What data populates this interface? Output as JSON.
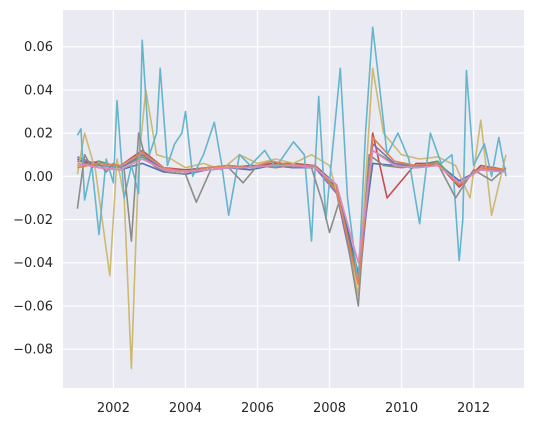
{
  "chart_data": {
    "type": "line",
    "title": "",
    "xlabel": "",
    "ylabel": "",
    "xlim": [
      2000.6,
      2013.4
    ],
    "ylim": [
      -0.098,
      0.077
    ],
    "grid": true,
    "legend": "none",
    "background": "#eaeaf2",
    "x_ticks": [
      {
        "value": 2002,
        "label": "2002"
      },
      {
        "value": 2004,
        "label": "2004"
      },
      {
        "value": 2006,
        "label": "2006"
      },
      {
        "value": 2008,
        "label": "2008"
      },
      {
        "value": 2010,
        "label": "2010"
      },
      {
        "value": 2012,
        "label": "2012"
      }
    ],
    "y_ticks": [
      {
        "value": 0.06,
        "label": "0.06"
      },
      {
        "value": 0.04,
        "label": "0.04"
      },
      {
        "value": 0.02,
        "label": "0.02"
      },
      {
        "value": 0.0,
        "label": "0.00"
      },
      {
        "value": -0.02,
        "label": "−0.02"
      },
      {
        "value": -0.04,
        "label": "−0.04"
      },
      {
        "value": -0.06,
        "label": "−0.06"
      },
      {
        "value": -0.08,
        "label": "−0.08"
      }
    ],
    "series": [
      {
        "color": "#4c72b0",
        "values": [
          [
            2001.0,
            0.008
          ],
          [
            2001.6,
            0.004
          ],
          [
            2002.2,
            0.003
          ],
          [
            2002.8,
            0.006
          ],
          [
            2003.4,
            0.002
          ],
          [
            2004.0,
            0.001
          ],
          [
            2004.6,
            0.003
          ],
          [
            2005.2,
            0.004
          ],
          [
            2005.8,
            0.003
          ],
          [
            2006.4,
            0.005
          ],
          [
            2007.0,
            0.004
          ],
          [
            2007.6,
            0.005
          ],
          [
            2008.2,
            -0.004
          ],
          [
            2008.8,
            -0.045
          ],
          [
            2009.2,
            0.006
          ],
          [
            2009.8,
            0.005
          ],
          [
            2010.4,
            0.004
          ],
          [
            2011.0,
            0.006
          ],
          [
            2011.6,
            -0.002
          ],
          [
            2012.2,
            0.003
          ],
          [
            2012.9,
            0.002
          ]
        ]
      },
      {
        "color": "#55a868",
        "values": [
          [
            2001.0,
            0.005
          ],
          [
            2001.6,
            0.007
          ],
          [
            2002.2,
            0.004
          ],
          [
            2002.8,
            0.009
          ],
          [
            2003.4,
            0.003
          ],
          [
            2004.0,
            0.002
          ],
          [
            2004.6,
            0.004
          ],
          [
            2005.2,
            0.005
          ],
          [
            2005.8,
            0.004
          ],
          [
            2006.4,
            0.006
          ],
          [
            2007.0,
            0.005
          ],
          [
            2007.6,
            0.004
          ],
          [
            2008.2,
            -0.006
          ],
          [
            2008.8,
            -0.048
          ],
          [
            2009.2,
            0.012
          ],
          [
            2009.8,
            0.006
          ],
          [
            2010.4,
            0.005
          ],
          [
            2011.0,
            0.007
          ],
          [
            2011.6,
            -0.004
          ],
          [
            2012.2,
            0.004
          ],
          [
            2012.9,
            0.003
          ]
        ]
      },
      {
        "color": "#c44e52",
        "values": [
          [
            2001.0,
            0.007
          ],
          [
            2001.6,
            0.006
          ],
          [
            2002.2,
            0.005
          ],
          [
            2002.8,
            0.012
          ],
          [
            2003.4,
            0.004
          ],
          [
            2004.0,
            0.003
          ],
          [
            2004.6,
            0.004
          ],
          [
            2005.2,
            0.005
          ],
          [
            2005.8,
            0.004
          ],
          [
            2006.4,
            0.006
          ],
          [
            2007.0,
            0.006
          ],
          [
            2007.6,
            0.005
          ],
          [
            2008.2,
            -0.005
          ],
          [
            2008.8,
            -0.05
          ],
          [
            2009.2,
            0.02
          ],
          [
            2009.6,
            -0.01
          ],
          [
            2010.4,
            0.006
          ],
          [
            2011.0,
            0.006
          ],
          [
            2011.6,
            -0.005
          ],
          [
            2012.2,
            0.005
          ],
          [
            2012.9,
            0.003
          ]
        ]
      },
      {
        "color": "#8172b2",
        "values": [
          [
            2001.0,
            0.009
          ],
          [
            2001.6,
            0.005
          ],
          [
            2002.2,
            0.004
          ],
          [
            2002.8,
            0.01
          ],
          [
            2003.4,
            0.003
          ],
          [
            2004.0,
            0.002
          ],
          [
            2004.6,
            0.003
          ],
          [
            2005.2,
            0.004
          ],
          [
            2005.8,
            0.005
          ],
          [
            2006.4,
            0.005
          ],
          [
            2007.0,
            0.004
          ],
          [
            2007.6,
            0.004
          ],
          [
            2008.2,
            -0.008
          ],
          [
            2008.8,
            -0.055
          ],
          [
            2009.2,
            0.015
          ],
          [
            2009.8,
            0.006
          ],
          [
            2010.4,
            0.004
          ],
          [
            2011.0,
            0.005
          ],
          [
            2011.6,
            -0.003
          ],
          [
            2012.2,
            0.004
          ],
          [
            2012.9,
            0.002
          ]
        ]
      },
      {
        "color": "#ccb974",
        "values": [
          [
            2001.0,
            0.001
          ],
          [
            2001.2,
            0.02
          ],
          [
            2001.5,
            0.003
          ],
          [
            2001.9,
            -0.046
          ],
          [
            2002.1,
            0.008
          ],
          [
            2002.3,
            -0.01
          ],
          [
            2002.5,
            -0.089
          ],
          [
            2002.7,
            0.006
          ],
          [
            2002.9,
            0.04
          ],
          [
            2003.2,
            0.01
          ],
          [
            2003.6,
            0.008
          ],
          [
            2004.0,
            0.004
          ],
          [
            2004.5,
            0.006
          ],
          [
            2005.0,
            0.003
          ],
          [
            2005.5,
            0.01
          ],
          [
            2006.0,
            0.006
          ],
          [
            2006.5,
            0.008
          ],
          [
            2007.0,
            0.006
          ],
          [
            2007.5,
            0.01
          ],
          [
            2008.0,
            0.005
          ],
          [
            2008.4,
            -0.02
          ],
          [
            2008.8,
            -0.055
          ],
          [
            2009.2,
            0.05
          ],
          [
            2009.5,
            0.02
          ],
          [
            2010.0,
            0.01
          ],
          [
            2010.5,
            0.008
          ],
          [
            2011.0,
            0.009
          ],
          [
            2011.5,
            0.005
          ],
          [
            2011.9,
            -0.01
          ],
          [
            2012.2,
            0.026
          ],
          [
            2012.5,
            -0.018
          ],
          [
            2012.9,
            0.01
          ]
        ]
      },
      {
        "color": "#64b5cd",
        "values": [
          [
            2001.0,
            0.019
          ],
          [
            2001.1,
            0.022
          ],
          [
            2001.2,
            -0.011
          ],
          [
            2001.4,
            0.005
          ],
          [
            2001.6,
            -0.027
          ],
          [
            2001.8,
            0.008
          ],
          [
            2002.0,
            -0.003
          ],
          [
            2002.1,
            0.035
          ],
          [
            2002.3,
            -0.01
          ],
          [
            2002.5,
            0.005
          ],
          [
            2002.7,
            -0.008
          ],
          [
            2002.8,
            0.063
          ],
          [
            2003.0,
            0.01
          ],
          [
            2003.2,
            0.02
          ],
          [
            2003.3,
            0.05
          ],
          [
            2003.5,
            0.005
          ],
          [
            2003.7,
            0.015
          ],
          [
            2003.9,
            0.02
          ],
          [
            2004.0,
            0.03
          ],
          [
            2004.2,
            0.0
          ],
          [
            2004.5,
            0.01
          ],
          [
            2004.8,
            0.025
          ],
          [
            2005.0,
            0.006
          ],
          [
            2005.2,
            -0.018
          ],
          [
            2005.5,
            0.01
          ],
          [
            2005.8,
            0.005
          ],
          [
            2006.2,
            0.012
          ],
          [
            2006.5,
            0.004
          ],
          [
            2007.0,
            0.016
          ],
          [
            2007.3,
            0.01
          ],
          [
            2007.5,
            -0.03
          ],
          [
            2007.7,
            0.037
          ],
          [
            2007.9,
            -0.02
          ],
          [
            2008.1,
            0.015
          ],
          [
            2008.3,
            0.05
          ],
          [
            2008.5,
            -0.01
          ],
          [
            2008.8,
            -0.05
          ],
          [
            2009.0,
            0.02
          ],
          [
            2009.2,
            0.069
          ],
          [
            2009.4,
            0.04
          ],
          [
            2009.6,
            0.01
          ],
          [
            2009.9,
            0.02
          ],
          [
            2010.2,
            0.008
          ],
          [
            2010.5,
            -0.022
          ],
          [
            2010.8,
            0.02
          ],
          [
            2011.1,
            0.006
          ],
          [
            2011.4,
            0.01
          ],
          [
            2011.6,
            -0.039
          ],
          [
            2011.7,
            -0.02
          ],
          [
            2011.8,
            0.049
          ],
          [
            2012.0,
            0.005
          ],
          [
            2012.3,
            0.015
          ],
          [
            2012.5,
            0.0
          ],
          [
            2012.7,
            0.018
          ],
          [
            2012.9,
            0.0
          ]
        ]
      },
      {
        "color": "#8c8c8c",
        "values": [
          [
            2001.0,
            -0.015
          ],
          [
            2001.2,
            0.01
          ],
          [
            2001.4,
            0.004
          ],
          [
            2001.6,
            0.006
          ],
          [
            2001.8,
            0.002
          ],
          [
            2002.0,
            0.006
          ],
          [
            2002.3,
            0.003
          ],
          [
            2002.5,
            -0.03
          ],
          [
            2002.7,
            0.02
          ],
          [
            2002.9,
            0.008
          ],
          [
            2003.2,
            0.004
          ],
          [
            2003.5,
            0.002
          ],
          [
            2004.0,
            0.001
          ],
          [
            2004.3,
            -0.012
          ],
          [
            2004.7,
            0.003
          ],
          [
            2005.2,
            0.004
          ],
          [
            2005.6,
            -0.003
          ],
          [
            2006.0,
            0.005
          ],
          [
            2006.5,
            0.004
          ],
          [
            2007.0,
            0.005
          ],
          [
            2007.5,
            0.004
          ],
          [
            2007.8,
            -0.012
          ],
          [
            2008.0,
            -0.026
          ],
          [
            2008.3,
            -0.01
          ],
          [
            2008.8,
            -0.06
          ],
          [
            2009.1,
            0.01
          ],
          [
            2009.5,
            0.005
          ],
          [
            2010.0,
            0.004
          ],
          [
            2010.5,
            0.005
          ],
          [
            2011.0,
            0.006
          ],
          [
            2011.5,
            -0.01
          ],
          [
            2012.0,
            0.003
          ],
          [
            2012.5,
            -0.002
          ],
          [
            2012.9,
            0.004
          ]
        ]
      },
      {
        "color": "#dd8452",
        "values": [
          [
            2001.0,
            0.004
          ],
          [
            2001.6,
            0.006
          ],
          [
            2002.2,
            0.005
          ],
          [
            2002.8,
            0.011
          ],
          [
            2003.4,
            0.004
          ],
          [
            2004.0,
            0.002
          ],
          [
            2004.6,
            0.004
          ],
          [
            2005.2,
            0.005
          ],
          [
            2005.8,
            0.004
          ],
          [
            2006.4,
            0.007
          ],
          [
            2007.0,
            0.005
          ],
          [
            2007.6,
            0.005
          ],
          [
            2008.2,
            -0.007
          ],
          [
            2008.8,
            -0.05
          ],
          [
            2009.2,
            0.018
          ],
          [
            2009.8,
            0.007
          ],
          [
            2010.4,
            0.005
          ],
          [
            2011.0,
            0.006
          ],
          [
            2011.6,
            -0.004
          ],
          [
            2012.2,
            0.004
          ],
          [
            2012.9,
            0.003
          ]
        ]
      },
      {
        "color": "#da8bc3",
        "values": [
          [
            2001.0,
            0.006
          ],
          [
            2001.6,
            0.004
          ],
          [
            2002.2,
            0.003
          ],
          [
            2002.8,
            0.008
          ],
          [
            2003.4,
            0.003
          ],
          [
            2004.0,
            0.002
          ],
          [
            2004.6,
            0.003
          ],
          [
            2005.2,
            0.004
          ],
          [
            2005.8,
            0.004
          ],
          [
            2006.4,
            0.005
          ],
          [
            2007.0,
            0.005
          ],
          [
            2007.6,
            0.004
          ],
          [
            2008.2,
            -0.004
          ],
          [
            2008.8,
            -0.04
          ],
          [
            2009.2,
            0.012
          ],
          [
            2009.8,
            0.005
          ],
          [
            2010.4,
            0.004
          ],
          [
            2011.0,
            0.005
          ],
          [
            2011.6,
            -0.003
          ],
          [
            2012.2,
            0.003
          ],
          [
            2012.9,
            0.002
          ]
        ]
      }
    ]
  }
}
